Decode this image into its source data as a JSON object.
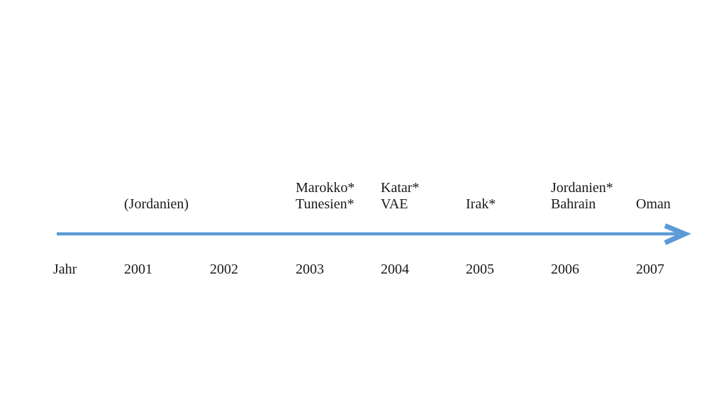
{
  "timeline": {
    "axis_label": "Jahr",
    "arrow_color": "#5B9BD5",
    "text_color": "#1a1a1a",
    "years": [
      {
        "year": "2001",
        "events": [
          "(Jordanien)"
        ]
      },
      {
        "year": "2002",
        "events": []
      },
      {
        "year": "2003",
        "events": [
          "Marokko*",
          "Tunesien*"
        ]
      },
      {
        "year": "2004",
        "events": [
          "Katar*",
          "VAE"
        ]
      },
      {
        "year": "2005",
        "events": [
          "Irak*"
        ]
      },
      {
        "year": "2006",
        "events": [
          "Jordanien*",
          "Bahrain"
        ]
      },
      {
        "year": "2007",
        "events": [
          "Oman"
        ]
      }
    ]
  }
}
